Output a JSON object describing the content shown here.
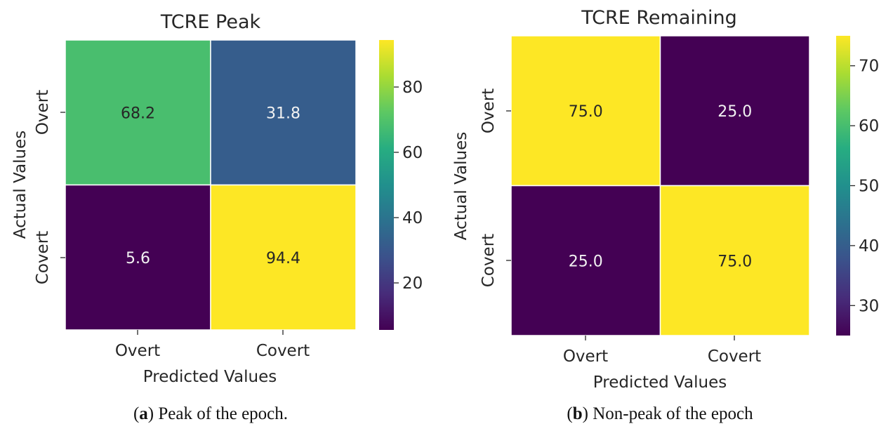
{
  "chart_data": [
    {
      "type": "heatmap",
      "title": "TCRE Peak",
      "xlabel": "Predicted Values",
      "ylabel": "Actual Values",
      "x_categories": [
        "Overt",
        "Covert"
      ],
      "y_categories": [
        "Overt",
        "Covert"
      ],
      "values": [
        [
          68.2,
          31.8
        ],
        [
          5.6,
          94.4
        ]
      ],
      "value_labels": [
        [
          "68.2",
          "31.8"
        ],
        [
          "5.6",
          "94.4"
        ]
      ],
      "colormap": "viridis",
      "colorbar": {
        "range": [
          5.6,
          94.4
        ],
        "ticks": [
          20,
          40,
          60,
          80
        ],
        "tick_labels": [
          "20",
          "40",
          "60",
          "80"
        ]
      },
      "caption": {
        "letter": "a",
        "text": ") Peak of the epoch."
      }
    },
    {
      "type": "heatmap",
      "title": "TCRE Remaining",
      "xlabel": "Predicted Values",
      "ylabel": "Actual Values",
      "x_categories": [
        "Overt",
        "Covert"
      ],
      "y_categories": [
        "Overt",
        "Covert"
      ],
      "values": [
        [
          75.0,
          25.0
        ],
        [
          25.0,
          75.0
        ]
      ],
      "value_labels": [
        [
          "75.0",
          "25.0"
        ],
        [
          "25.0",
          "75.0"
        ]
      ],
      "colormap": "viridis",
      "colorbar": {
        "range": [
          25.0,
          75.0
        ],
        "ticks": [
          30,
          40,
          50,
          60,
          70
        ],
        "tick_labels": [
          "30",
          "40",
          "50",
          "60",
          "70"
        ]
      },
      "caption": {
        "letter": "b",
        "text": ") Non-peak of the epoch"
      }
    }
  ]
}
